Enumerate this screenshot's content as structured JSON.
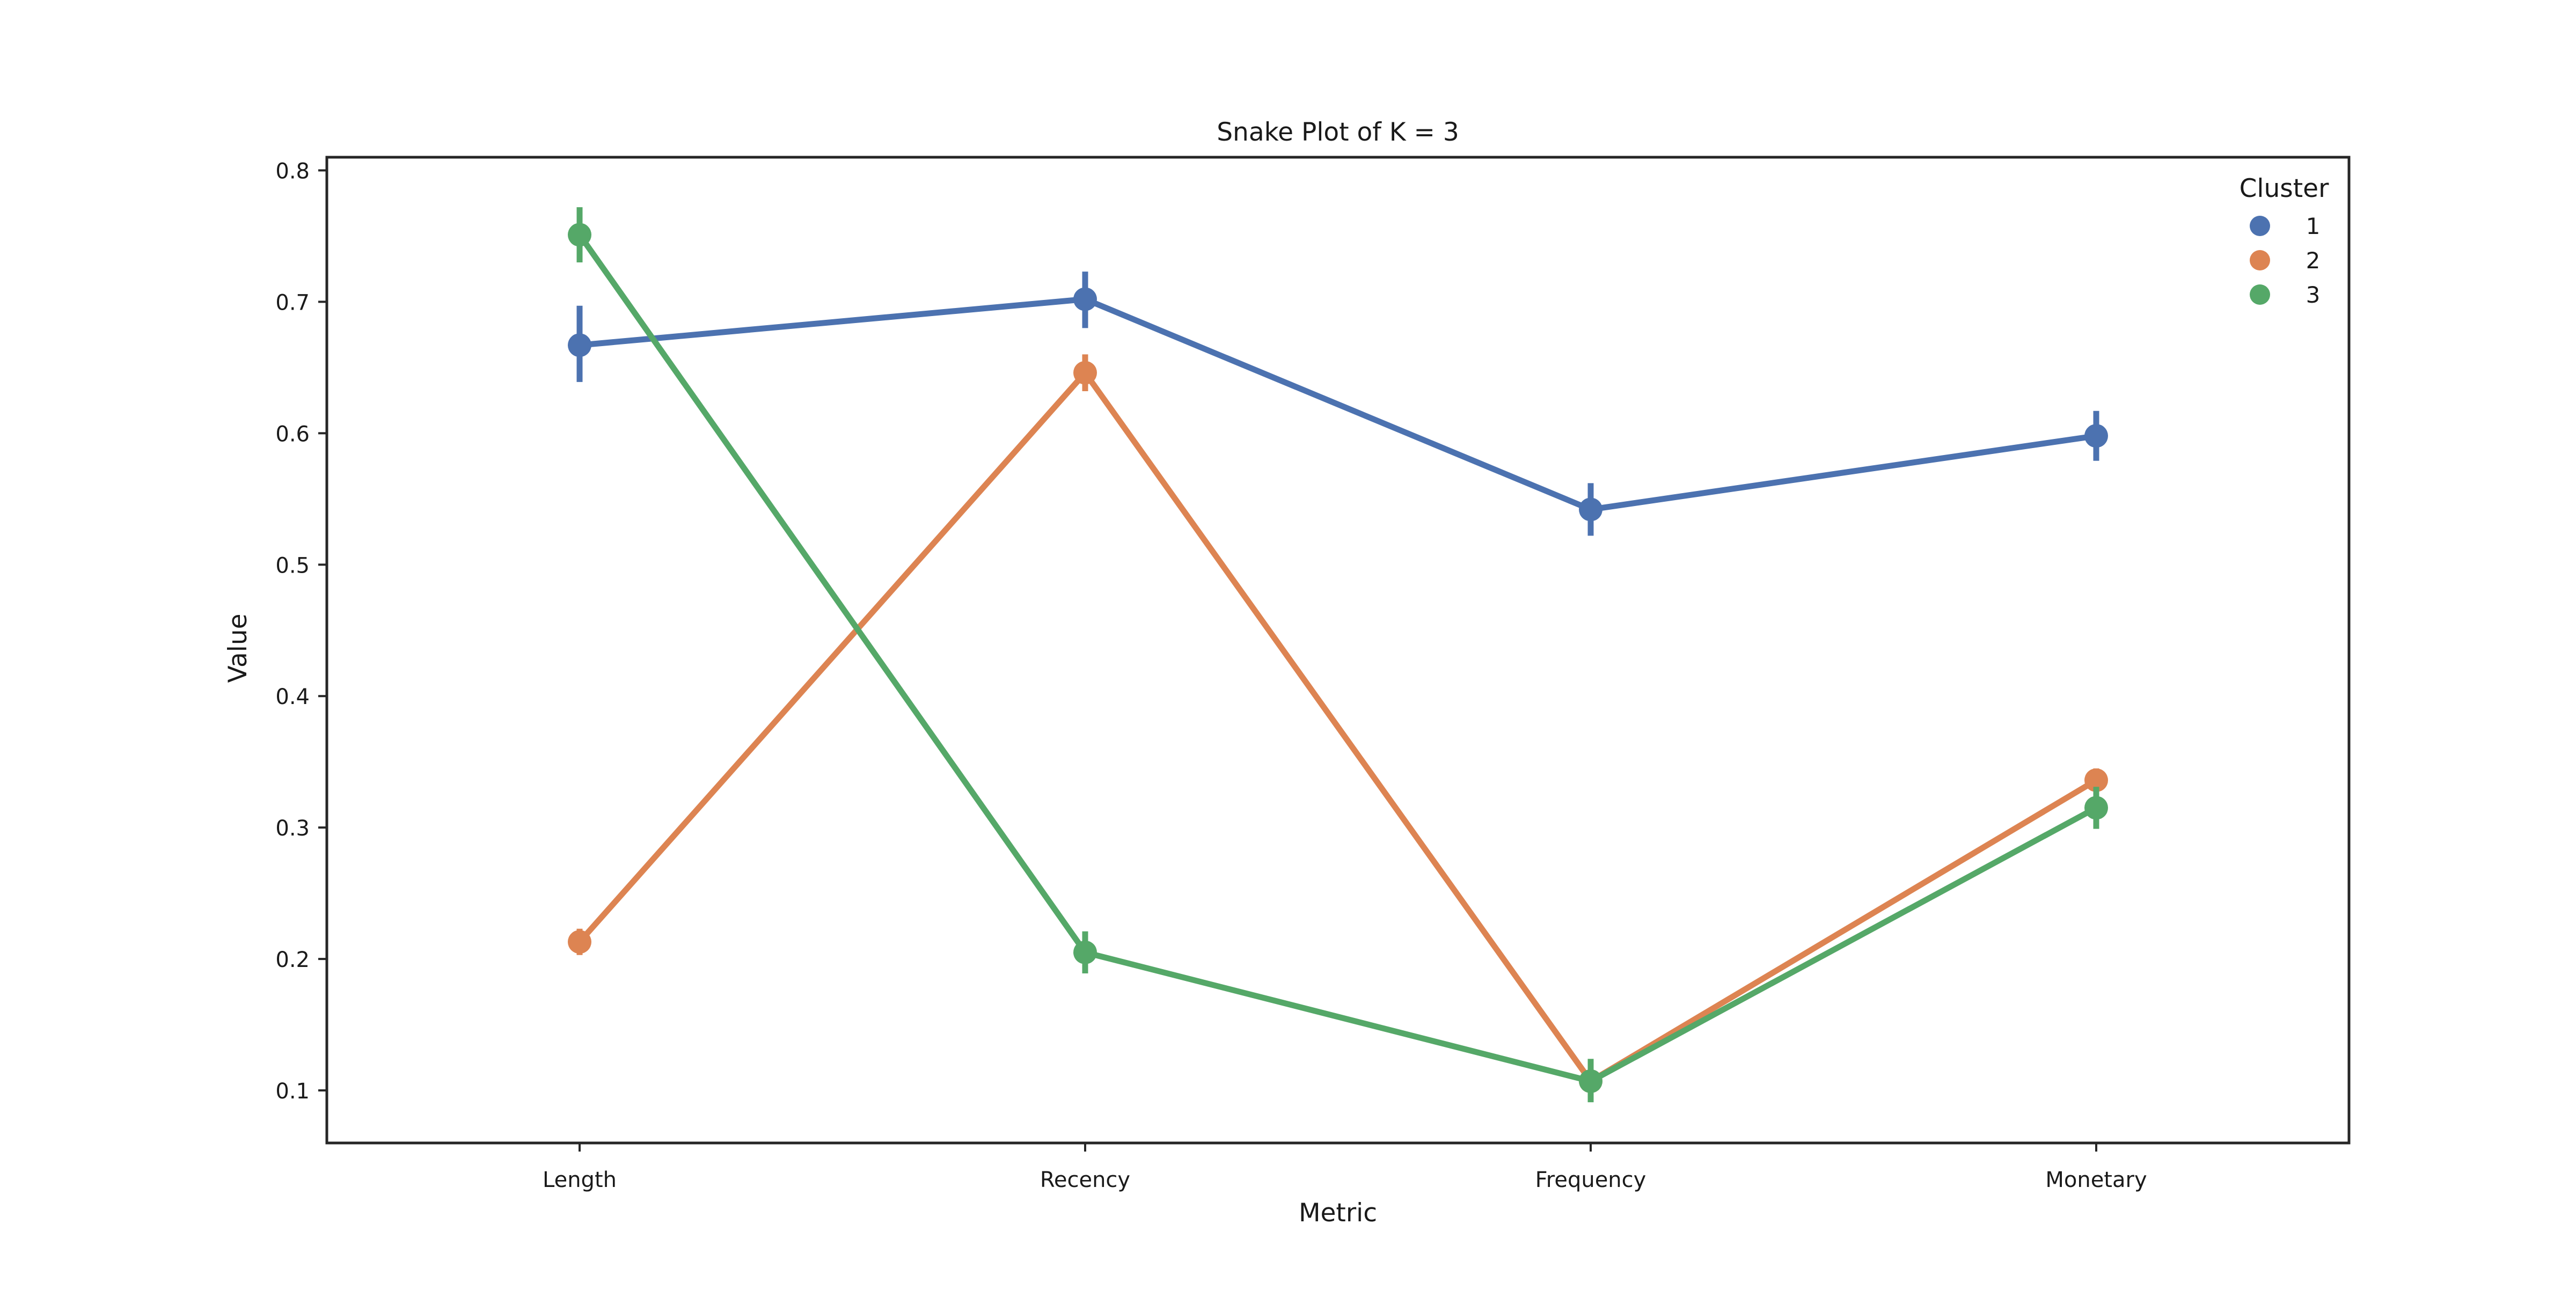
{
  "chart_data": {
    "type": "line",
    "title": "Snake Plot of K = 3",
    "xlabel": "Metric",
    "ylabel": "Value",
    "categories": [
      "Length",
      "Recency",
      "Frequency",
      "Monetary"
    ],
    "ylim": [
      0.06,
      0.81
    ],
    "yticks": [
      0.1,
      0.2,
      0.3,
      0.4,
      0.5,
      0.6,
      0.7,
      0.8
    ],
    "ytick_labels": [
      "0.1",
      "0.2",
      "0.3",
      "0.4",
      "0.5",
      "0.6",
      "0.7",
      "0.8"
    ],
    "grid": false,
    "legend": {
      "title": "Cluster",
      "placement": "top-right"
    },
    "series": [
      {
        "name": "1",
        "color": "#4c72b0",
        "values": [
          0.667,
          0.702,
          0.542,
          0.598
        ],
        "ci_low": [
          0.639,
          0.68,
          0.522,
          0.579
        ],
        "ci_high": [
          0.697,
          0.723,
          0.562,
          0.617
        ]
      },
      {
        "name": "2",
        "color": "#dd8452",
        "values": [
          0.213,
          0.646,
          0.107,
          0.336
        ],
        "ci_low": [
          0.203,
          0.632,
          0.097,
          0.325
        ],
        "ci_high": [
          0.223,
          0.66,
          0.117,
          0.345
        ]
      },
      {
        "name": "3",
        "color": "#55a868",
        "values": [
          0.751,
          0.205,
          0.107,
          0.315
        ],
        "ci_low": [
          0.73,
          0.189,
          0.091,
          0.299
        ],
        "ci_high": [
          0.772,
          0.221,
          0.124,
          0.331
        ]
      }
    ]
  }
}
